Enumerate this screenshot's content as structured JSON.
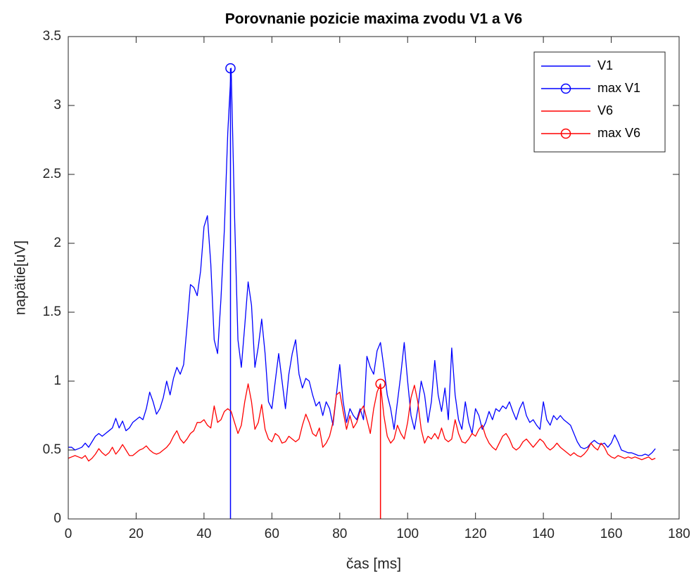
{
  "chart_data": {
    "type": "line",
    "title": "Porovnanie pozicie maxima zvodu V1 a V6",
    "xlabel": "čas [ms]",
    "ylabel": "napätie[uV]",
    "xlim": [
      0,
      180
    ],
    "xticks": [
      0,
      20,
      40,
      60,
      80,
      100,
      120,
      140,
      160,
      180
    ],
    "ylim": [
      0,
      3.5
    ],
    "yticks": [
      0,
      0.5,
      1,
      1.5,
      2,
      2.5,
      3,
      3.5
    ],
    "grid": false,
    "legend": "northeast",
    "x": [
      0,
      1,
      2,
      3,
      4,
      5,
      6,
      7,
      8,
      9,
      10,
      11,
      12,
      13,
      14,
      15,
      16,
      17,
      18,
      19,
      20,
      21,
      22,
      23,
      24,
      25,
      26,
      27,
      28,
      29,
      30,
      31,
      32,
      33,
      34,
      35,
      36,
      37,
      38,
      39,
      40,
      41,
      42,
      43,
      44,
      45,
      46,
      47,
      48,
      49,
      50,
      51,
      52,
      53,
      54,
      55,
      56,
      57,
      58,
      59,
      60,
      61,
      62,
      63,
      64,
      65,
      66,
      67,
      68,
      69,
      70,
      71,
      72,
      73,
      74,
      75,
      76,
      77,
      78,
      79,
      80,
      81,
      82,
      83,
      84,
      85,
      86,
      87,
      88,
      89,
      90,
      91,
      92,
      93,
      94,
      95,
      96,
      97,
      98,
      99,
      100,
      101,
      102,
      103,
      104,
      105,
      106,
      107,
      108,
      109,
      110,
      111,
      112,
      113,
      114,
      115,
      116,
      117,
      118,
      119,
      120,
      121,
      122,
      123,
      124,
      125,
      126,
      127,
      128,
      129,
      130,
      131,
      132,
      133,
      134,
      135,
      136,
      137,
      138,
      139,
      140,
      141,
      142,
      143,
      144,
      145,
      146,
      147,
      148,
      149,
      150,
      151,
      152,
      153,
      154,
      155,
      156,
      157,
      158,
      159,
      160,
      161,
      162,
      163,
      164,
      165,
      166,
      167,
      168,
      169,
      170,
      171,
      172,
      173
    ],
    "series": [
      {
        "name": "V1",
        "color": "#0000ff",
        "values": [
          0.52,
          0.52,
          0.5,
          0.51,
          0.52,
          0.55,
          0.52,
          0.56,
          0.6,
          0.62,
          0.6,
          0.62,
          0.64,
          0.66,
          0.73,
          0.66,
          0.71,
          0.64,
          0.66,
          0.7,
          0.72,
          0.74,
          0.72,
          0.8,
          0.92,
          0.85,
          0.76,
          0.8,
          0.88,
          1.0,
          0.9,
          1.02,
          1.1,
          1.05,
          1.12,
          1.4,
          1.7,
          1.68,
          1.62,
          1.8,
          2.12,
          2.2,
          1.85,
          1.3,
          1.2,
          1.6,
          2.1,
          2.8,
          3.27,
          2.2,
          1.3,
          1.1,
          1.4,
          1.72,
          1.55,
          1.1,
          1.25,
          1.45,
          1.2,
          0.85,
          0.8,
          1.0,
          1.2,
          1.0,
          0.8,
          1.05,
          1.2,
          1.3,
          1.05,
          0.95,
          1.02,
          1.0,
          0.9,
          0.82,
          0.85,
          0.75,
          0.85,
          0.8,
          0.68,
          0.9,
          1.12,
          0.85,
          0.7,
          0.8,
          0.75,
          0.72,
          0.8,
          0.72,
          1.18,
          1.1,
          1.05,
          1.22,
          1.28,
          1.1,
          0.9,
          0.8,
          0.65,
          0.85,
          1.05,
          1.28,
          1.0,
          0.75,
          0.65,
          0.8,
          1.0,
          0.9,
          0.7,
          0.85,
          1.15,
          0.9,
          0.78,
          0.95,
          0.72,
          1.24,
          0.9,
          0.72,
          0.65,
          0.85,
          0.7,
          0.62,
          0.8,
          0.75,
          0.65,
          0.7,
          0.78,
          0.72,
          0.8,
          0.78,
          0.82,
          0.8,
          0.85,
          0.78,
          0.72,
          0.8,
          0.85,
          0.75,
          0.7,
          0.72,
          0.68,
          0.65,
          0.85,
          0.72,
          0.68,
          0.75,
          0.72,
          0.75,
          0.72,
          0.7,
          0.68,
          0.62,
          0.56,
          0.52,
          0.51,
          0.52,
          0.55,
          0.57,
          0.55,
          0.54,
          0.55,
          0.52,
          0.55,
          0.61,
          0.56,
          0.5,
          0.49,
          0.48,
          0.48,
          0.47,
          0.46,
          0.46,
          0.47,
          0.46,
          0.48,
          0.51
        ]
      },
      {
        "name": "max V1",
        "color": "#0000ff",
        "x": [
          47.8
        ],
        "values": [
          3.27
        ],
        "marker": "o",
        "stem": true
      },
      {
        "name": "V6",
        "color": "#ff0000",
        "values": [
          0.44,
          0.45,
          0.46,
          0.45,
          0.44,
          0.46,
          0.42,
          0.44,
          0.47,
          0.51,
          0.48,
          0.46,
          0.48,
          0.52,
          0.47,
          0.5,
          0.54,
          0.5,
          0.46,
          0.46,
          0.48,
          0.5,
          0.51,
          0.53,
          0.5,
          0.48,
          0.47,
          0.48,
          0.5,
          0.52,
          0.55,
          0.6,
          0.64,
          0.58,
          0.55,
          0.58,
          0.62,
          0.64,
          0.7,
          0.7,
          0.72,
          0.68,
          0.66,
          0.82,
          0.7,
          0.72,
          0.78,
          0.8,
          0.78,
          0.7,
          0.62,
          0.68,
          0.85,
          0.98,
          0.85,
          0.65,
          0.7,
          0.83,
          0.65,
          0.58,
          0.56,
          0.62,
          0.6,
          0.55,
          0.56,
          0.6,
          0.58,
          0.56,
          0.58,
          0.68,
          0.76,
          0.7,
          0.62,
          0.6,
          0.66,
          0.52,
          0.55,
          0.6,
          0.7,
          0.9,
          0.92,
          0.78,
          0.65,
          0.75,
          0.66,
          0.7,
          0.78,
          0.82,
          0.72,
          0.62,
          0.8,
          0.92,
          0.98,
          0.75,
          0.6,
          0.55,
          0.58,
          0.68,
          0.62,
          0.58,
          0.7,
          0.88,
          0.97,
          0.85,
          0.65,
          0.55,
          0.6,
          0.58,
          0.62,
          0.58,
          0.66,
          0.58,
          0.56,
          0.58,
          0.72,
          0.62,
          0.56,
          0.55,
          0.58,
          0.62,
          0.6,
          0.65,
          0.68,
          0.6,
          0.55,
          0.52,
          0.5,
          0.55,
          0.6,
          0.62,
          0.58,
          0.52,
          0.5,
          0.52,
          0.56,
          0.58,
          0.55,
          0.52,
          0.55,
          0.58,
          0.56,
          0.52,
          0.5,
          0.52,
          0.55,
          0.52,
          0.5,
          0.48,
          0.46,
          0.48,
          0.46,
          0.45,
          0.47,
          0.5,
          0.55,
          0.52,
          0.5,
          0.55,
          0.52,
          0.47,
          0.45,
          0.44,
          0.46,
          0.45,
          0.44,
          0.45,
          0.44,
          0.45,
          0.44,
          0.43,
          0.44,
          0.45,
          0.43,
          0.44
        ]
      },
      {
        "name": "max V6",
        "color": "#ff0000",
        "x": [
          92
        ],
        "values": [
          0.98
        ],
        "marker": "o",
        "stem": true
      }
    ]
  }
}
